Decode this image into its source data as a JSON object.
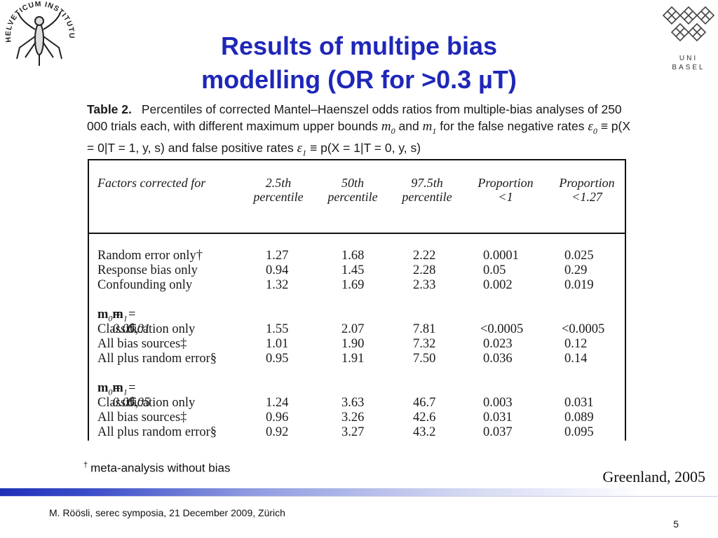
{
  "logo_left": {
    "text": "HELVETICUM INSTITUTUM TROPOLOGICUM",
    "icon": "mosquito-seal-icon"
  },
  "logo_right": {
    "line1": "UNI",
    "line2": "BASEL",
    "icon": "uni-basel-logo-icon"
  },
  "title": {
    "line1": "Results of multipe bias",
    "line2": "modelling (OR for >0.3 µT)"
  },
  "caption": {
    "label": "Table 2.",
    "part1": "Percentiles of corrected Mantel–Haenszel odds ratios from multiple-bias analyses of 250 000 trials each, with different maximum upper bounds",
    "m0": "m",
    "and": "and",
    "part2": "for the false negative rates",
    "eps0_def": "≡ p(X = 0|T = 1, y, s)",
    "part3": "and false positive rates",
    "eps1_def": "≡ p(X = 1|T = 0, y, s)"
  },
  "table": {
    "headers": [
      {
        "line1": "Factors corrected for",
        "line2": ""
      },
      {
        "line1": "2.5th",
        "line2": "percentile"
      },
      {
        "line1": "50th",
        "line2": "percentile"
      },
      {
        "line1": "97.5th",
        "line2": "percentile"
      },
      {
        "line1": "Proportion",
        "line2": "<1"
      },
      {
        "line1": "Proportion",
        "line2": "<1.27"
      }
    ],
    "group1": [
      [
        "Random error only†",
        "1.27",
        "1.68",
        "2.22",
        "0.0001",
        "0.025"
      ],
      [
        "Response bias only",
        "0.94",
        "1.45",
        "2.28",
        "0.05",
        "0.29"
      ],
      [
        "Confounding only",
        "1.32",
        "1.69",
        "2.33",
        "0.002",
        "0.019"
      ]
    ],
    "group2_header": {
      "m0_val": " = 0.05, ",
      "m1_val": " = 0.01"
    },
    "group2": [
      [
        "Classification only",
        "1.55",
        "2.07",
        "7.81",
        "<0.0005",
        "<0.0005"
      ],
      [
        "All bias sources‡",
        "1.01",
        "1.90",
        "7.32",
        "0.023",
        "0.12"
      ],
      [
        "All plus random error§",
        "0.95",
        "1.91",
        "7.50",
        "0.036",
        "0.14"
      ]
    ],
    "group3_header": {
      "m0_val": " = 0.05, ",
      "m1_val": " = 0.05"
    },
    "group3": [
      [
        "Classification only",
        "1.24",
        "3.63",
        "46.7",
        "0.003",
        "0.031"
      ],
      [
        "All bias sources‡",
        "0.96",
        "3.26",
        "42.6",
        "0.031",
        "0.089"
      ],
      [
        "All plus random error§",
        "0.92",
        "3.27",
        "43.2",
        "0.037",
        "0.095"
      ]
    ]
  },
  "footnote": {
    "mark": "†",
    "text": "meta-analysis without bias"
  },
  "citation": "Greenland, 2005",
  "footer": "M. Röösli, serec symposia, 21 December 2009, Zürich",
  "page_number": "5",
  "colors": {
    "title": "#1f27b8",
    "bar": "#2030b8"
  }
}
